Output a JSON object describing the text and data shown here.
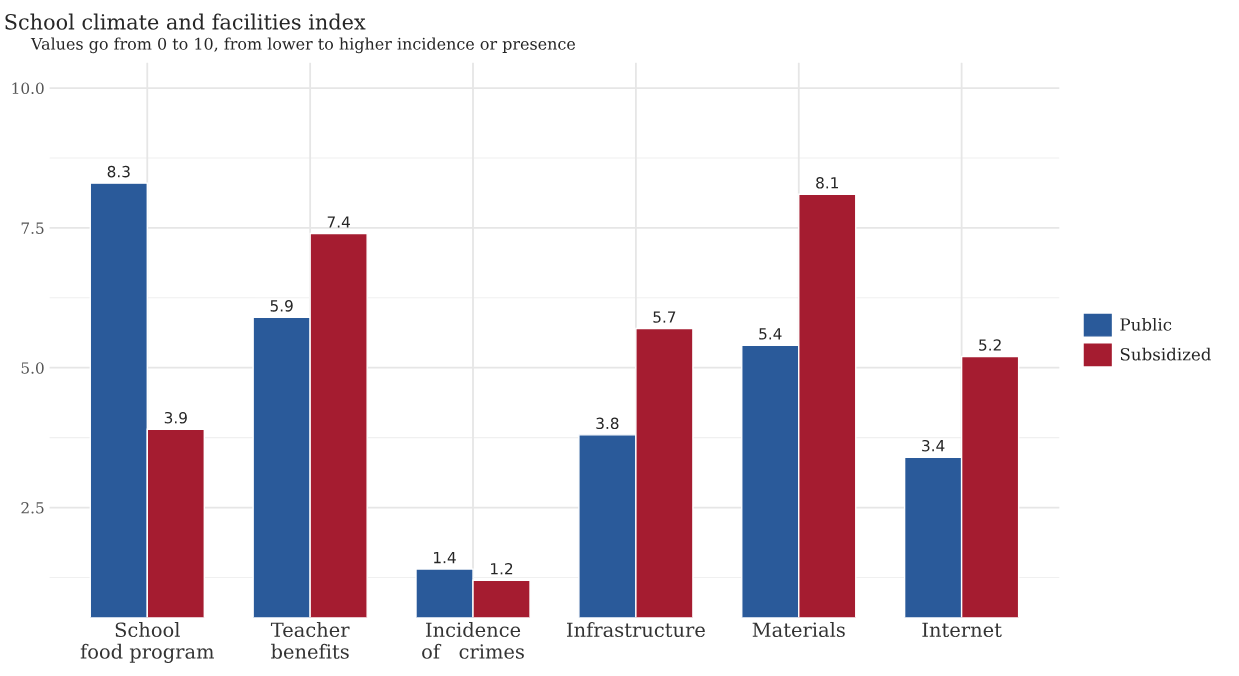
{
  "chart_data": {
    "type": "bar",
    "title": "School climate and facilities index",
    "subtitle": "Values go from 0 to 10, from lower to higher incidence or presence",
    "categories": [
      "School\nfood program",
      "Teacher\nbenefits",
      "Incidence\nof   crimes",
      "Infrastructure",
      "Materials",
      "Internet"
    ],
    "series": [
      {
        "name": "Public",
        "color": "#2a5a9a",
        "values": [
          8.3,
          5.9,
          1.4,
          3.8,
          5.4,
          3.4
        ]
      },
      {
        "name": "Subsidized",
        "color": "#a51c30",
        "values": [
          3.9,
          7.4,
          1.2,
          5.7,
          8.1,
          5.2
        ]
      }
    ],
    "ylim": [
      0.54,
      10.45
    ],
    "yticks": [
      {
        "value": 2.5,
        "label": "2.5"
      },
      {
        "value": 5.0,
        "label": "5.0"
      },
      {
        "value": 7.5,
        "label": "7.5"
      },
      {
        "value": 10.0,
        "label": "10.0"
      }
    ],
    "data_labels": true,
    "grid": true,
    "legend": "right"
  }
}
